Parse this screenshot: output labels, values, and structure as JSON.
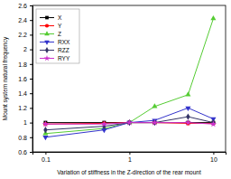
{
  "chart_data": {
    "type": "line",
    "x_label": "Variation of stiffness in the Z-direction of the rear mount",
    "y_label": "Mount system natural frequency",
    "x": [
      0.1,
      0.5,
      1,
      2,
      5,
      10
    ],
    "series": [
      {
        "name": "X",
        "color": "#000000",
        "marker": "square",
        "values": [
          1.0,
          1.0,
          1.0,
          1.0,
          1.0,
          1.0
        ]
      },
      {
        "name": "Y",
        "color": "#ff0000",
        "marker": "circle",
        "values": [
          0.98,
          0.99,
          1.0,
          1.0,
          0.99,
          0.99
        ]
      },
      {
        "name": "Z",
        "color": "#55cc33",
        "marker": "triangle",
        "values": [
          0.85,
          0.92,
          1.0,
          1.22,
          1.38,
          2.42
        ]
      },
      {
        "name": "RXX",
        "color": "#3333cc",
        "marker": "triangle-down",
        "values": [
          0.8,
          0.9,
          1.0,
          1.03,
          1.2,
          1.05
        ]
      },
      {
        "name": "RZZ",
        "color": "#333366",
        "marker": "diamond",
        "values": [
          0.9,
          0.95,
          1.0,
          1.0,
          1.08,
          1.0
        ]
      },
      {
        "name": "RYY",
        "color": "#cc33cc",
        "marker": "star",
        "values": [
          0.98,
          0.98,
          1.0,
          1.0,
          1.0,
          0.98
        ]
      }
    ],
    "log": "x",
    "xlim": [
      0.07,
      14
    ],
    "xticks": [
      0.1,
      1,
      10
    ],
    "ylim": [
      0.6,
      2.6
    ],
    "yticks": [
      0.6,
      0.8,
      1,
      1.2,
      1.4,
      1.6,
      1.8,
      2,
      2.2,
      2.4,
      2.6
    ],
    "legend": "upper-left",
    "grid": false
  }
}
